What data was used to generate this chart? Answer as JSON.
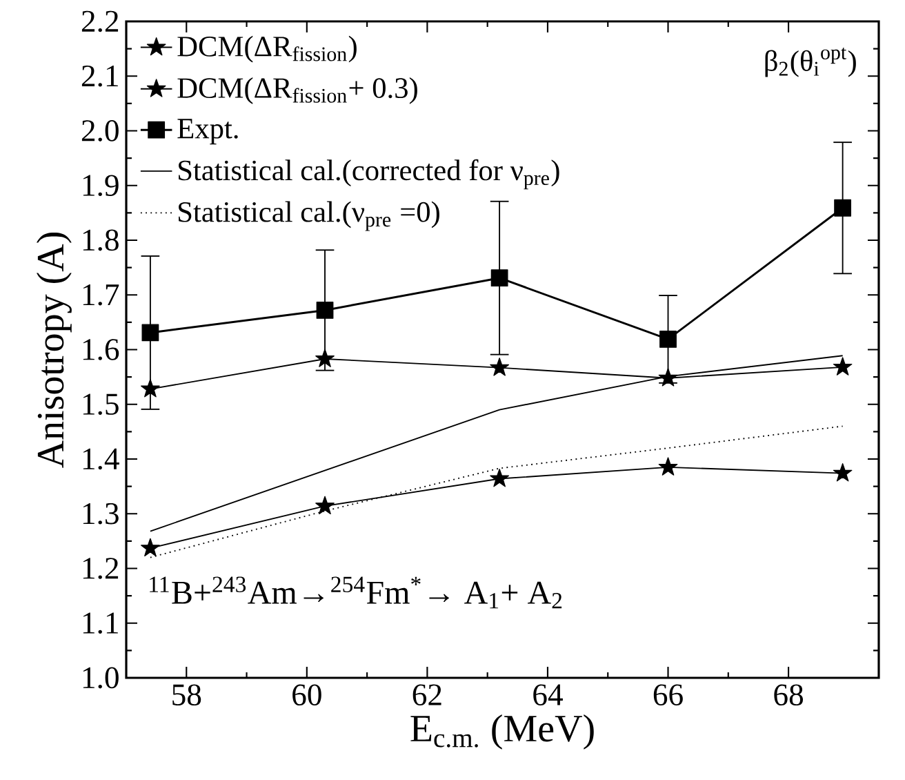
{
  "chart_data": {
    "type": "line",
    "xlabel": "E$_{c.m.}$ (MeV)",
    "ylabel": "Anisotropy (A)",
    "x": [
      57.4,
      60.3,
      63.2,
      66.0,
      68.9
    ],
    "xlim": [
      57,
      69.5
    ],
    "xticks": [
      58,
      60,
      62,
      64,
      66,
      68
    ],
    "ylim": [
      1.0,
      2.2
    ],
    "yticks": [
      {
        "value": 1.0,
        "label": "1.0"
      },
      1.1,
      1.2,
      1.3,
      1.4,
      1.5,
      1.6,
      1.7,
      1.8,
      1.9,
      {
        "value": 2.0,
        "label": "2.0"
      },
      2.1,
      2.2
    ],
    "grid": false,
    "legend": "top left",
    "annotations": [
      "β$_{2}$(θ$_{i}$$^{opt}$)",
      "$^{11}$B+$^{243}$Am→$^{254}$Fm$^{*}$→ A$_{1}$+ A$_{2}$"
    ],
    "series": [
      {
        "name": "DCM(ΔR$_{fission}$)",
        "color": "#000000",
        "marker": "star",
        "line_style": "solid",
        "values": [
          1.237,
          1.314,
          1.364,
          1.385,
          1.374
        ]
      },
      {
        "name": "DCM(ΔR$_{fission}$+ 0.3)",
        "color": "#000000",
        "marker": "star",
        "line_style": "solid",
        "values": [
          1.528,
          1.583,
          1.567,
          1.548,
          1.568
        ]
      },
      {
        "name": "Expt.",
        "color": "#000000",
        "marker": "square",
        "line_style": "solid",
        "values": [
          1.631,
          1.672,
          1.731,
          1.619,
          1.859
        ],
        "errors": [
          0.14,
          0.11,
          0.14,
          0.08,
          0.12
        ]
      },
      {
        "name": "Statistical cal.(corrected for ν$_{pre}$)",
        "color": "#000000",
        "marker": "none",
        "line_style": "solid",
        "values": [
          1.268,
          1.379,
          1.49,
          1.551,
          1.589
        ]
      },
      {
        "name": "Statistical cal.(ν$_{pre}$ =0)",
        "color": "#000000",
        "marker": "none",
        "line_style": "dotted",
        "values": [
          1.22,
          1.305,
          1.383,
          1.42,
          1.46
        ]
      }
    ]
  }
}
